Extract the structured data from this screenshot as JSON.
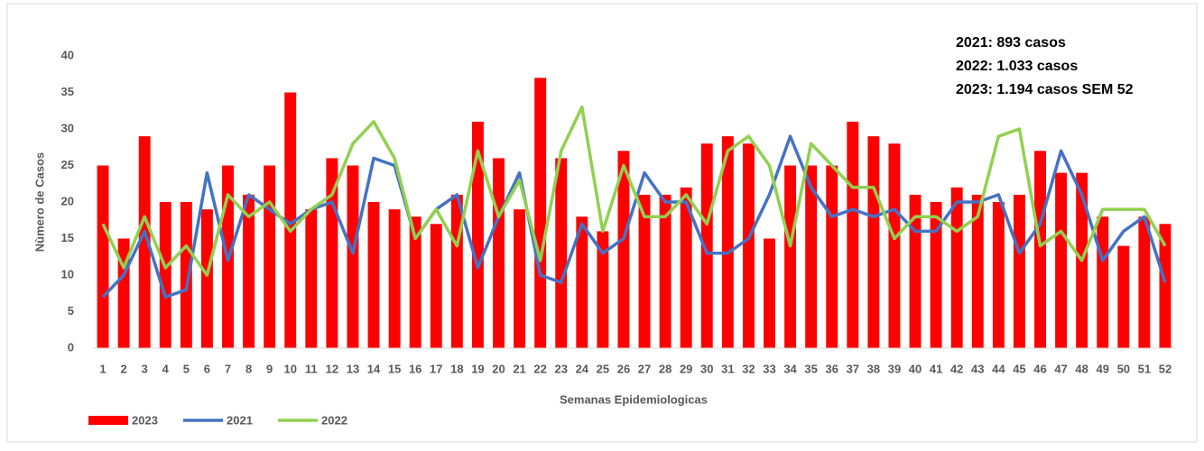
{
  "chart_data": {
    "type": "combo",
    "xlabel": "Semanas Epidemiologicas",
    "ylabel": "Nùmero de Casos",
    "annotations": [
      "2021: 893 casos",
      "2022: 1.033 casos",
      "2023: 1.194 casos SEM 52"
    ],
    "categories": [
      "1",
      "2",
      "3",
      "4",
      "5",
      "6",
      "7",
      "8",
      "9",
      "10",
      "11",
      "12",
      "13",
      "14",
      "15",
      "16",
      "17",
      "18",
      "19",
      "20",
      "21",
      "22",
      "23",
      "24",
      "25",
      "26",
      "27",
      "28",
      "29",
      "30",
      "31",
      "32",
      "33",
      "34",
      "35",
      "36",
      "37",
      "38",
      "39",
      "40",
      "41",
      "42",
      "43",
      "44",
      "45",
      "46",
      "47",
      "48",
      "49",
      "50",
      "51",
      "52"
    ],
    "series": [
      {
        "name": "2023",
        "type": "bar",
        "color": "#ff0000",
        "values": [
          25,
          15,
          29,
          20,
          20,
          19,
          25,
          21,
          25,
          35,
          19,
          26,
          25,
          20,
          19,
          18,
          17,
          21,
          31,
          26,
          19,
          37,
          26,
          18,
          16,
          27,
          21,
          21,
          22,
          28,
          29,
          28,
          15,
          25,
          25,
          25,
          31,
          29,
          28,
          21,
          20,
          22,
          21,
          20,
          21,
          27,
          24,
          24,
          18,
          14,
          18,
          17
        ]
      },
      {
        "name": "2021",
        "type": "line",
        "color": "#4472c4",
        "values": [
          7,
          10,
          16,
          7,
          8,
          24,
          12,
          21,
          19,
          17,
          19,
          20,
          13,
          26,
          25,
          15,
          19,
          21,
          11,
          18,
          24,
          10,
          9,
          17,
          13,
          15,
          24,
          20,
          20,
          13,
          13,
          15,
          21,
          29,
          22,
          18,
          19,
          18,
          19,
          16,
          16,
          20,
          20,
          21,
          13,
          17,
          27,
          21,
          12,
          16,
          18,
          9
        ]
      },
      {
        "name": "2022",
        "type": "line",
        "color": "#92d050",
        "values": [
          17,
          11,
          18,
          11,
          14,
          10,
          21,
          18,
          20,
          16,
          19,
          21,
          28,
          31,
          26,
          15,
          19,
          14,
          27,
          18,
          23,
          12,
          27,
          33,
          16,
          25,
          18,
          18,
          21,
          17,
          27,
          29,
          25,
          14,
          28,
          25,
          22,
          22,
          15,
          18,
          18,
          16,
          18,
          29,
          30,
          14,
          16,
          12,
          19,
          19,
          19,
          14
        ]
      }
    ],
    "ylim": [
      0,
      40
    ],
    "yticks": [
      0,
      5,
      10,
      15,
      20,
      25,
      30,
      35,
      40
    ],
    "grid": false
  }
}
